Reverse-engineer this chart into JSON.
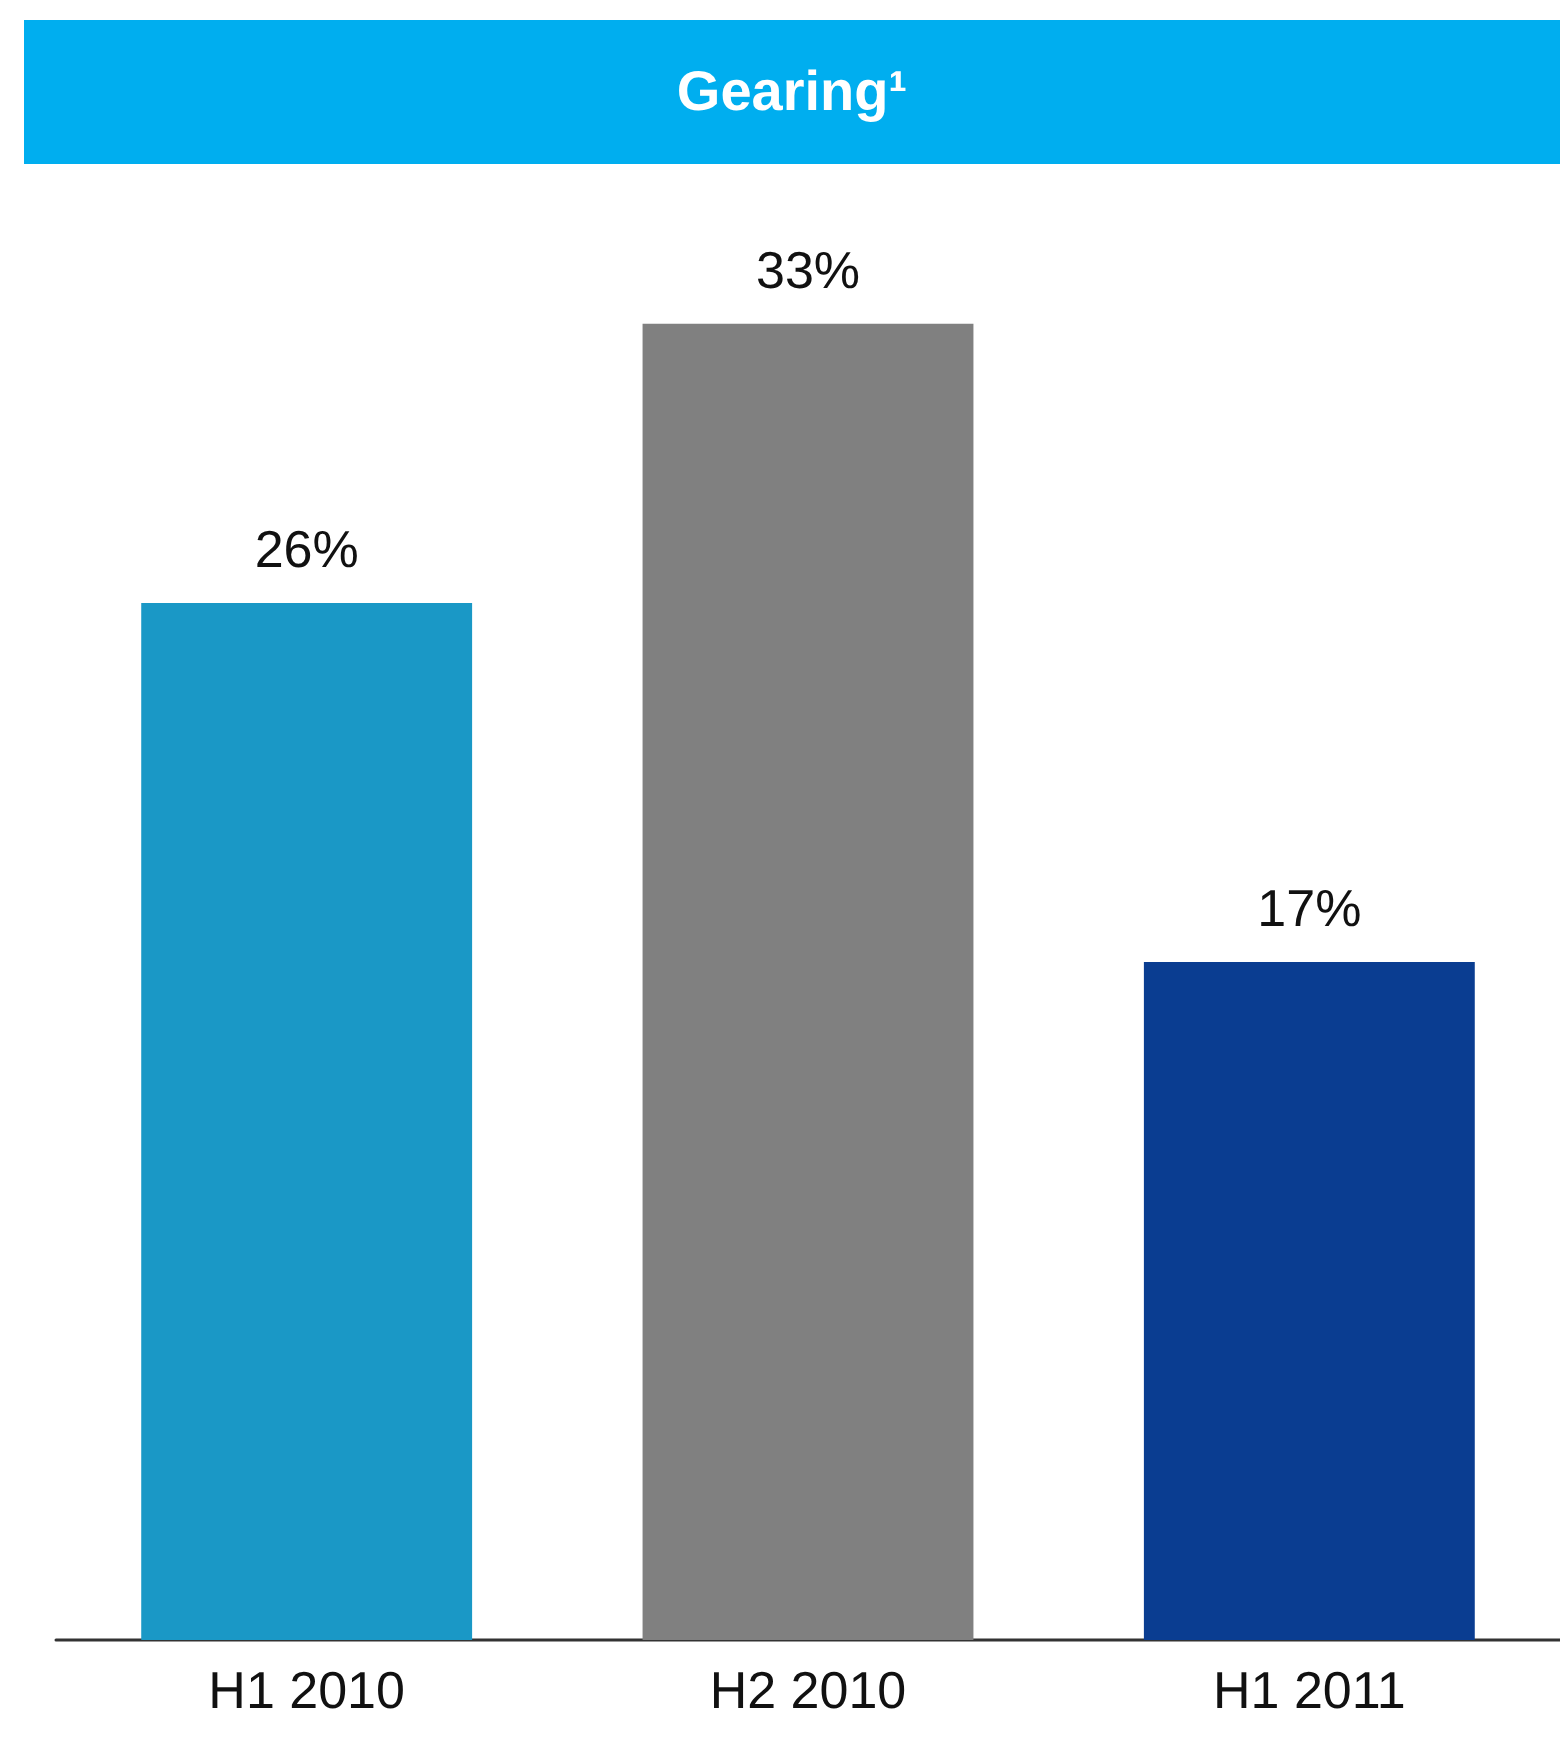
{
  "chart_data": {
    "type": "bar",
    "title": "Gearing¹",
    "categories": [
      "H1 2010",
      "H2 2010",
      "H1 2011"
    ],
    "values": [
      26,
      33,
      17
    ],
    "colors": [
      "#1a98c6",
      "#808080",
      "#0a3d91"
    ],
    "value_labels": [
      "26%",
      "33%",
      "17%"
    ]
  }
}
